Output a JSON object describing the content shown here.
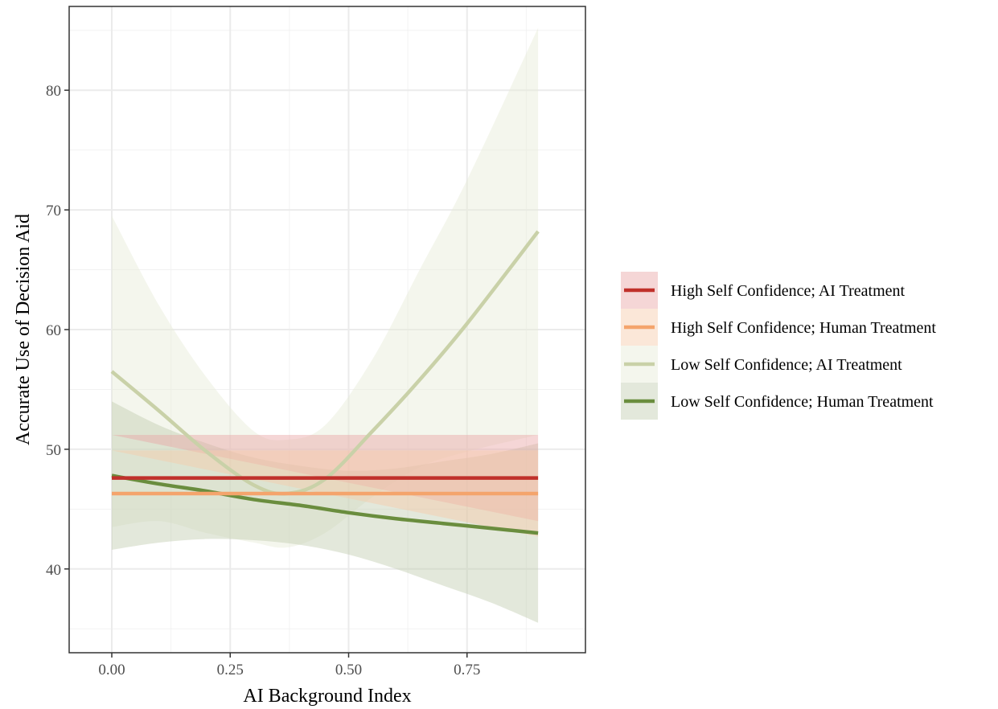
{
  "chart_data": {
    "type": "line",
    "title": "",
    "xlabel": "AI Background Index",
    "ylabel": "Accurate Use of Decision Aid",
    "xlim": [
      -0.09,
      1.0
    ],
    "ylim": [
      33,
      87
    ],
    "x_ticks": [
      0.0,
      0.25,
      0.5,
      0.75
    ],
    "x_tick_labels": [
      "0.00",
      "0.25",
      "0.50",
      "0.75"
    ],
    "y_ticks": [
      40,
      50,
      60,
      70,
      80
    ],
    "y_tick_labels": [
      "40",
      "50",
      "60",
      "70",
      "80"
    ],
    "grid": true,
    "legend_position": "right",
    "series": [
      {
        "name": "High Self Confidence; AI Treatment",
        "color": "#c0302b",
        "fill_color": "#e8a4a4",
        "x": [
          0.0,
          0.9
        ],
        "y": [
          47.6,
          47.6
        ],
        "ci_lower": [
          44.0,
          44.0
        ],
        "ci_upper": [
          51.2,
          51.2
        ]
      },
      {
        "name": "High Self Confidence; Human Treatment",
        "color": "#f4a46c",
        "fill_color": "#f7c9a8",
        "x": [
          0.0,
          0.9
        ],
        "y": [
          46.3,
          46.3
        ],
        "ci_lower": [
          42.7,
          42.7
        ],
        "ci_upper": [
          49.9,
          49.9
        ]
      },
      {
        "name": "Low Self Confidence; AI Treatment",
        "color": "#c9d1a8",
        "fill_color": "#e6ead6",
        "x": [
          0.0,
          0.1,
          0.2,
          0.3,
          0.37,
          0.45,
          0.55,
          0.65,
          0.75,
          0.9
        ],
        "y": [
          56.5,
          53.2,
          49.8,
          47.0,
          46.3,
          47.5,
          51.5,
          55.8,
          60.5,
          68.2
        ],
        "ci_lower": [
          43.5,
          44.0,
          43.0,
          42.2,
          41.8,
          43.0,
          46.0,
          48.5,
          49.8,
          51.2
        ],
        "ci_upper": [
          69.5,
          62.0,
          56.0,
          51.5,
          50.8,
          52.0,
          57.5,
          65.0,
          72.5,
          85.2
        ]
      },
      {
        "name": "Low Self Confidence; Human Treatment",
        "color": "#6a8d3e",
        "fill_color": "#c2ccb0",
        "x": [
          0.0,
          0.1,
          0.2,
          0.3,
          0.4,
          0.5,
          0.6,
          0.7,
          0.8,
          0.9
        ],
        "y": [
          47.8,
          47.1,
          46.5,
          45.8,
          45.3,
          44.7,
          44.2,
          43.8,
          43.4,
          43.0
        ],
        "ci_lower": [
          41.6,
          42.2,
          42.5,
          42.4,
          42.0,
          41.2,
          40.0,
          38.6,
          37.2,
          35.5
        ],
        "ci_upper": [
          54.0,
          52.0,
          50.5,
          49.3,
          48.6,
          48.2,
          48.4,
          49.0,
          49.6,
          50.5
        ]
      }
    ]
  }
}
